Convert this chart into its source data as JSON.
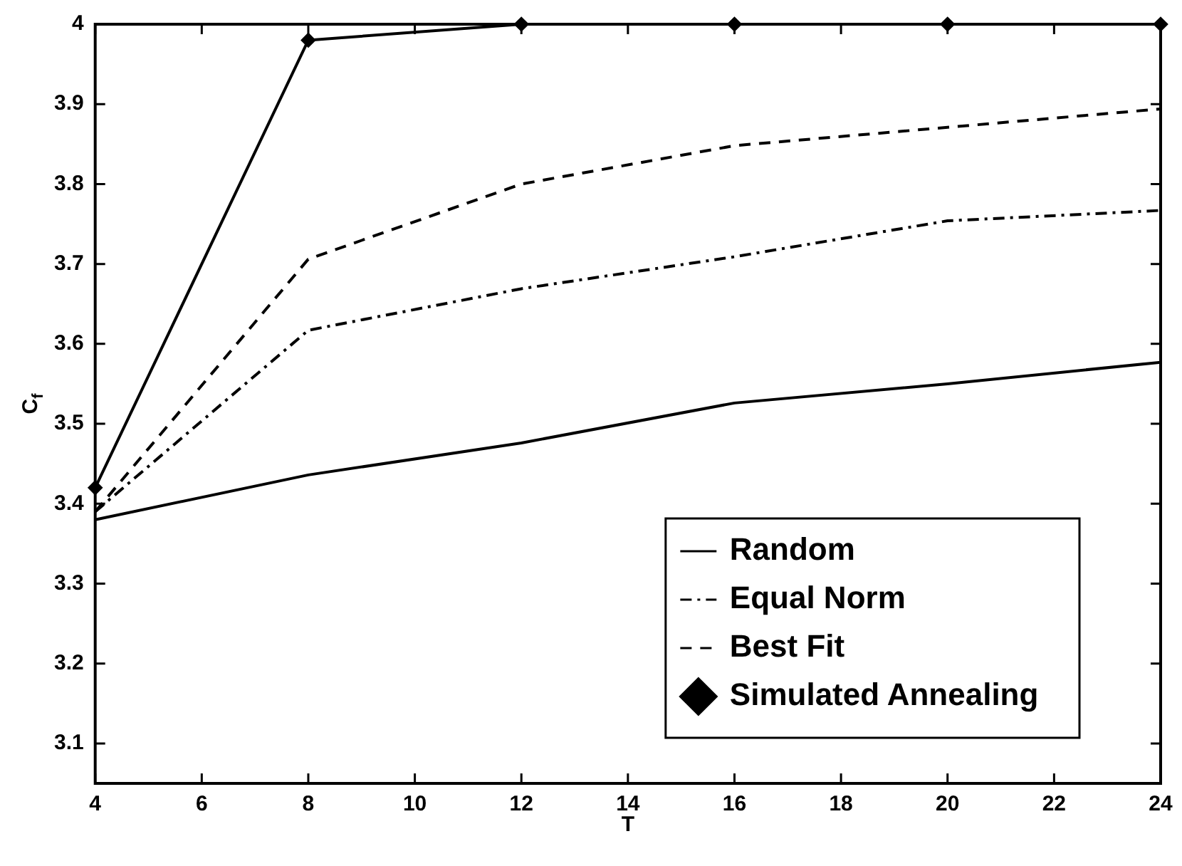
{
  "chart_data": {
    "type": "line",
    "xlabel": "T",
    "ylabel": "C$_{f}$",
    "x": [
      4,
      8,
      12,
      16,
      20,
      24
    ],
    "series": [
      {
        "name": "Random",
        "color": "#000000",
        "line_style": "solid",
        "marker": "none",
        "values": [
          3.38,
          3.436,
          3.476,
          3.526,
          3.55,
          3.577
        ]
      },
      {
        "name": "Equal Norm",
        "color": "#000000",
        "line_style": "dashdot",
        "marker": "none",
        "values": [
          3.39,
          3.617,
          3.669,
          3.709,
          3.754,
          3.767
        ]
      },
      {
        "name": "Best Fit",
        "color": "#000000",
        "line_style": "dashed",
        "marker": "none",
        "values": [
          3.39,
          3.706,
          3.8,
          3.848,
          3.871,
          3.894
        ]
      },
      {
        "name": "Simulated Annealing",
        "color": "#000000",
        "line_style": "solid",
        "marker": "diamond",
        "values": [
          3.42,
          3.98,
          4,
          4,
          4,
          4
        ]
      }
    ],
    "xlim": [
      4,
      24
    ],
    "xticks": [
      4,
      6,
      8,
      10,
      12,
      14,
      16,
      18,
      20,
      22,
      24
    ],
    "ylim": [
      3.05,
      4
    ],
    "yticks": [
      3.1,
      3.2,
      3.3,
      3.4,
      3.5,
      3.6,
      3.7,
      3.8,
      3.9,
      4
    ],
    "grid": false,
    "legend": "bottom right"
  }
}
